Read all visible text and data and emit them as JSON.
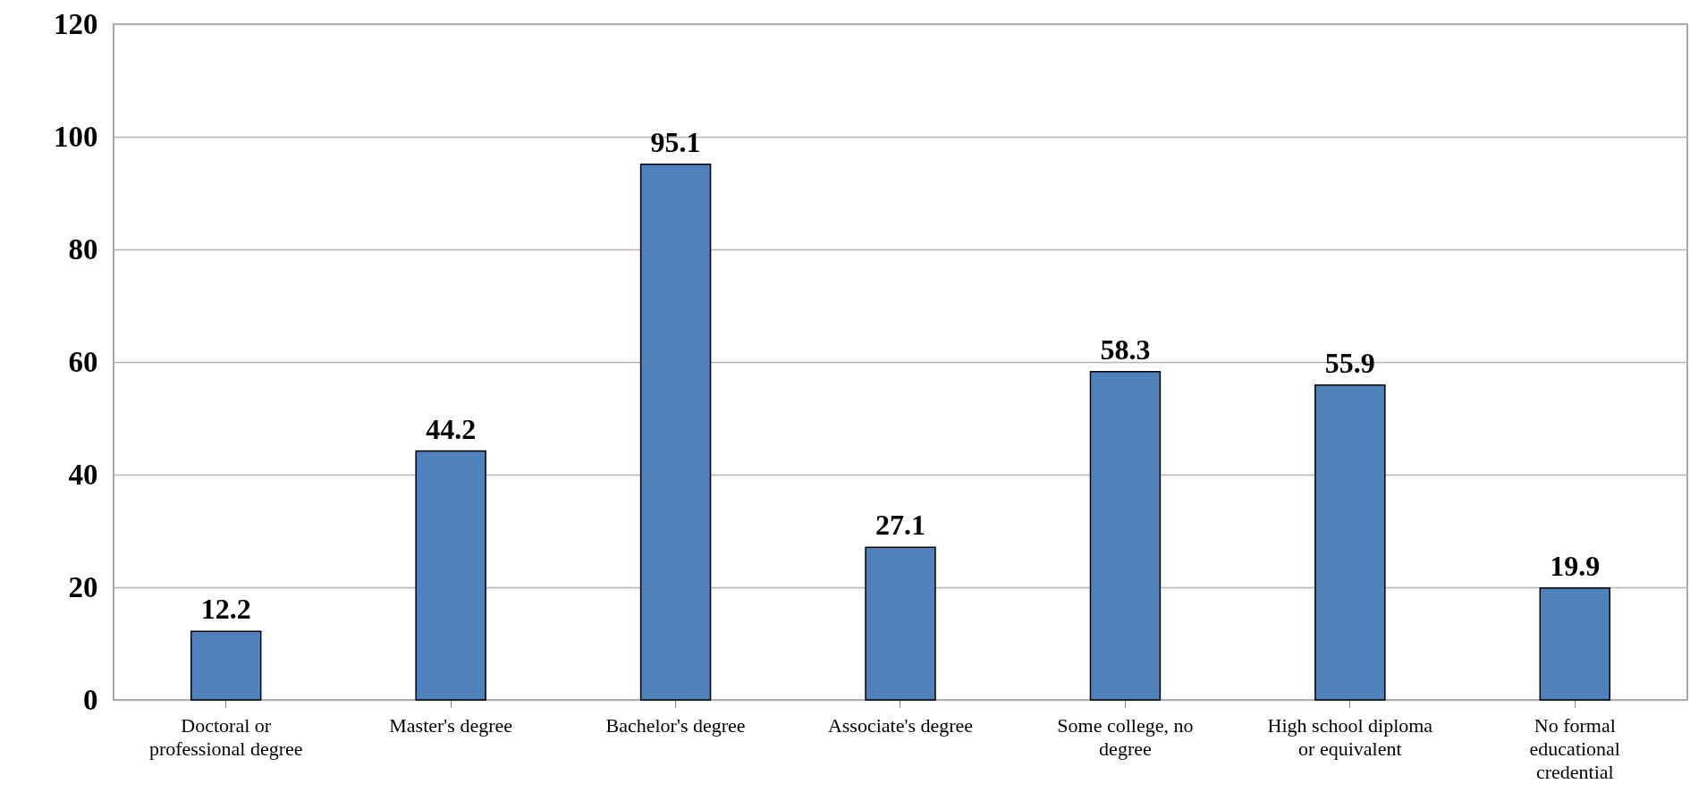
{
  "chart_data": {
    "type": "bar",
    "categories": [
      "Doctoral or professional degree",
      "Master's degree",
      "Bachelor's degree",
      "Associate's degree",
      "Some college, no degree",
      "High school diploma or equivalent",
      "No formal educational credential"
    ],
    "values": [
      12.2,
      44.2,
      95.1,
      27.1,
      58.3,
      55.9,
      19.9
    ],
    "color": "#4f81bd",
    "ylim": [
      0,
      120
    ],
    "yticks": [
      0,
      20,
      40,
      60,
      80,
      100,
      120
    ],
    "grid": "y",
    "data_labels": true
  }
}
